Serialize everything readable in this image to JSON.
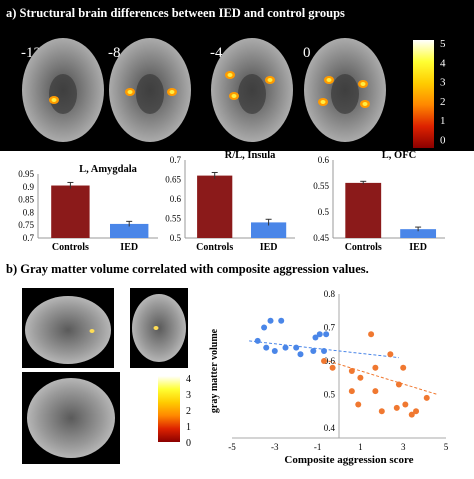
{
  "panel_a": {
    "title": "a) Structural brain differences between IED and  control groups",
    "slices": [
      {
        "label": "-12"
      },
      {
        "label": "-8"
      },
      {
        "label": "-4"
      },
      {
        "label": "0"
      }
    ],
    "colorbar": {
      "ticks": [
        "5",
        "4",
        "3",
        "2",
        "1",
        "0"
      ],
      "colors": [
        "#ffffff",
        "#ffff33",
        "#ffcc00",
        "#ff8800",
        "#dd2200",
        "#8b0000"
      ]
    }
  },
  "panel_b": {
    "title": "b) Gray matter volume correlated with composite aggression values.",
    "colorbar": {
      "ticks": [
        "4",
        "3",
        "2",
        "1",
        "0"
      ],
      "colors": [
        "#ffffff",
        "#ffff33",
        "#ffcc00",
        "#ff8800",
        "#dd2200",
        "#8b0000"
      ]
    }
  },
  "chart_data": [
    {
      "type": "bar",
      "title": "L, Amygdala",
      "categories": [
        "Controls",
        "IED"
      ],
      "values": [
        0.905,
        0.755
      ],
      "errors": [
        0.012,
        0.01
      ],
      "colors": [
        "#8b1a1a",
        "#4a86e8"
      ],
      "ylim": [
        0.7,
        0.95
      ],
      "yticks": [
        "0.95",
        "0.9",
        "0.85",
        "0.8",
        "0.75",
        "0.7"
      ],
      "ytick_values": [
        0.95,
        0.9,
        0.85,
        0.8,
        0.75,
        0.7
      ]
    },
    {
      "type": "bar",
      "title": "R/L, Insula",
      "categories": [
        "Controls",
        "IED"
      ],
      "values": [
        0.66,
        0.54
      ],
      "errors": [
        0.008,
        0.008
      ],
      "colors": [
        "#8b1a1a",
        "#4a86e8"
      ],
      "ylim": [
        0.5,
        0.7
      ],
      "yticks": [
        "0.7",
        "0.65",
        "0.6",
        "0.55",
        "0.5"
      ],
      "ytick_values": [
        0.7,
        0.65,
        0.6,
        0.55,
        0.5
      ]
    },
    {
      "type": "bar",
      "title": "L, OFC",
      "categories": [
        "Controls",
        "IED"
      ],
      "values": [
        0.556,
        0.467
      ],
      "errors": [
        0.003,
        0.004
      ],
      "colors": [
        "#8b1a1a",
        "#4a86e8"
      ],
      "ylim": [
        0.45,
        0.6
      ],
      "yticks": [
        "0.6",
        "0.55",
        "0.5",
        "0.45"
      ],
      "ytick_values": [
        0.6,
        0.55,
        0.5,
        0.45
      ]
    },
    {
      "type": "scatter",
      "xlabel": "Composite aggression score",
      "ylabel": "gray matter volume",
      "xlim": [
        -5,
        5
      ],
      "ylim": [
        0.4,
        0.8
      ],
      "xticks": [
        "-5",
        "-3",
        "-1",
        "1",
        "3",
        "5"
      ],
      "xtick_values": [
        -5,
        -3,
        -1,
        1,
        3,
        5
      ],
      "yticks": [
        "0.8",
        "0.7",
        "0.6",
        "0.5",
        "0.4"
      ],
      "ytick_values": [
        0.8,
        0.7,
        0.6,
        0.5,
        0.4
      ],
      "series": [
        {
          "color": "#4a86e8",
          "points": [
            [
              -3.5,
              0.7
            ],
            [
              -3.2,
              0.72
            ],
            [
              -2.7,
              0.72
            ],
            [
              -3.8,
              0.66
            ],
            [
              -3.4,
              0.64
            ],
            [
              -3.0,
              0.63
            ],
            [
              -2.5,
              0.64
            ],
            [
              -2.0,
              0.64
            ],
            [
              -1.8,
              0.62
            ],
            [
              -1.2,
              0.63
            ],
            [
              -1.1,
              0.67
            ],
            [
              -0.9,
              0.68
            ],
            [
              -0.6,
              0.68
            ],
            [
              -0.7,
              0.63
            ]
          ],
          "trend": [
            [
              -4.2,
              0.66
            ],
            [
              2.8,
              0.61
            ]
          ]
        },
        {
          "color": "#f07830",
          "points": [
            [
              -0.7,
              0.6
            ],
            [
              -0.3,
              0.58
            ],
            [
              0.6,
              0.57
            ],
            [
              1.0,
              0.55
            ],
            [
              1.7,
              0.58
            ],
            [
              1.5,
              0.68
            ],
            [
              2.4,
              0.62
            ],
            [
              3.0,
              0.58
            ],
            [
              0.6,
              0.51
            ],
            [
              1.7,
              0.51
            ],
            [
              2.8,
              0.53
            ],
            [
              0.9,
              0.47
            ],
            [
              2.0,
              0.45
            ],
            [
              2.7,
              0.46
            ],
            [
              3.1,
              0.47
            ],
            [
              4.1,
              0.49
            ],
            [
              3.4,
              0.44
            ],
            [
              3.6,
              0.45
            ]
          ],
          "trend": [
            [
              -0.5,
              0.6
            ],
            [
              4.6,
              0.5
            ]
          ]
        }
      ]
    }
  ]
}
